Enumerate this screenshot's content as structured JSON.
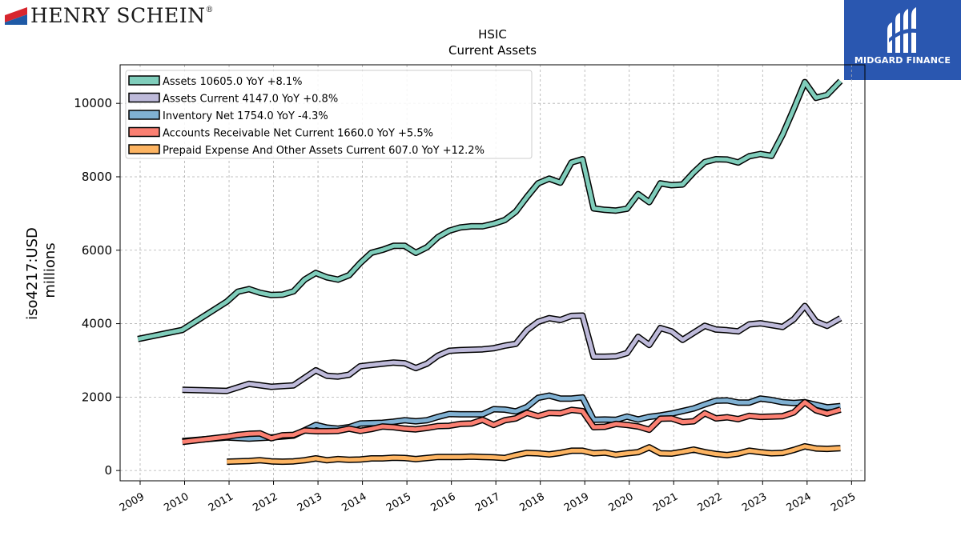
{
  "brand": {
    "left_name": "HENRY SCHEIN",
    "left_mark": "®",
    "right_name": "MIDGARD FINANCE"
  },
  "chart_data": {
    "type": "line",
    "title": "HSIC",
    "subtitle": "Current  Assets",
    "xlabel": "",
    "ylabel_line1": "iso4217:USD",
    "ylabel_line2": "millions",
    "xlim": [
      2008.55,
      2025.3
    ],
    "ylim": [
      -280,
      11050
    ],
    "x_ticks": [
      2009,
      2010,
      2011,
      2012,
      2013,
      2014,
      2015,
      2016,
      2017,
      2018,
      2019,
      2020,
      2021,
      2022,
      2023,
      2024,
      2025
    ],
    "y_ticks": [
      0,
      2000,
      4000,
      6000,
      8000,
      10000
    ],
    "grid": true,
    "legend_position": "top-left",
    "series": [
      {
        "name": "Assets",
        "legend": "Assets  10605.0 YoY +8.1%",
        "color": "#7fcdbb",
        "points": [
          [
            2008.95,
            3580
          ],
          [
            2009.95,
            3830
          ],
          [
            2010.95,
            4600
          ],
          [
            2011.2,
            4870
          ],
          [
            2011.45,
            4940
          ],
          [
            2011.7,
            4840
          ],
          [
            2011.95,
            4780
          ],
          [
            2012.2,
            4790
          ],
          [
            2012.45,
            4880
          ],
          [
            2012.7,
            5200
          ],
          [
            2012.95,
            5380
          ],
          [
            2013.2,
            5260
          ],
          [
            2013.45,
            5200
          ],
          [
            2013.7,
            5320
          ],
          [
            2013.95,
            5650
          ],
          [
            2014.2,
            5930
          ],
          [
            2014.45,
            6010
          ],
          [
            2014.7,
            6120
          ],
          [
            2014.95,
            6120
          ],
          [
            2015.2,
            5930
          ],
          [
            2015.45,
            6080
          ],
          [
            2015.7,
            6360
          ],
          [
            2015.95,
            6530
          ],
          [
            2016.2,
            6620
          ],
          [
            2016.45,
            6650
          ],
          [
            2016.7,
            6650
          ],
          [
            2016.95,
            6720
          ],
          [
            2017.2,
            6820
          ],
          [
            2017.45,
            7050
          ],
          [
            2017.7,
            7450
          ],
          [
            2017.95,
            7820
          ],
          [
            2018.2,
            7950
          ],
          [
            2018.45,
            7840
          ],
          [
            2018.7,
            8390
          ],
          [
            2018.95,
            8480
          ],
          [
            2019.2,
            7140
          ],
          [
            2019.45,
            7100
          ],
          [
            2019.7,
            7080
          ],
          [
            2019.95,
            7130
          ],
          [
            2020.2,
            7530
          ],
          [
            2020.45,
            7310
          ],
          [
            2020.7,
            7820
          ],
          [
            2020.95,
            7770
          ],
          [
            2021.2,
            7790
          ],
          [
            2021.45,
            8120
          ],
          [
            2021.7,
            8400
          ],
          [
            2021.95,
            8480
          ],
          [
            2022.2,
            8470
          ],
          [
            2022.45,
            8390
          ],
          [
            2022.7,
            8560
          ],
          [
            2022.95,
            8620
          ],
          [
            2023.2,
            8570
          ],
          [
            2023.45,
            9150
          ],
          [
            2023.7,
            9850
          ],
          [
            2023.95,
            10580
          ],
          [
            2024.2,
            10150
          ],
          [
            2024.45,
            10230
          ],
          [
            2024.75,
            10605
          ]
        ]
      },
      {
        "name": "Assets Current",
        "legend": "Assets Current  4147.0 YoY +0.8%",
        "color": "#bebada",
        "points": [
          [
            2009.95,
            2200
          ],
          [
            2010.95,
            2170
          ],
          [
            2011.45,
            2360
          ],
          [
            2011.95,
            2280
          ],
          [
            2012.45,
            2320
          ],
          [
            2012.95,
            2730
          ],
          [
            2013.2,
            2580
          ],
          [
            2013.45,
            2560
          ],
          [
            2013.7,
            2610
          ],
          [
            2013.95,
            2840
          ],
          [
            2014.45,
            2910
          ],
          [
            2014.7,
            2940
          ],
          [
            2014.95,
            2920
          ],
          [
            2015.2,
            2790
          ],
          [
            2015.45,
            2910
          ],
          [
            2015.7,
            3130
          ],
          [
            2015.95,
            3260
          ],
          [
            2016.2,
            3280
          ],
          [
            2016.7,
            3300
          ],
          [
            2016.95,
            3330
          ],
          [
            2017.2,
            3400
          ],
          [
            2017.45,
            3450
          ],
          [
            2017.7,
            3820
          ],
          [
            2017.95,
            4050
          ],
          [
            2018.2,
            4150
          ],
          [
            2018.45,
            4100
          ],
          [
            2018.7,
            4210
          ],
          [
            2018.95,
            4220
          ],
          [
            2019.2,
            3100
          ],
          [
            2019.45,
            3100
          ],
          [
            2019.7,
            3110
          ],
          [
            2019.95,
            3200
          ],
          [
            2020.2,
            3640
          ],
          [
            2020.45,
            3420
          ],
          [
            2020.7,
            3880
          ],
          [
            2020.95,
            3790
          ],
          [
            2021.2,
            3560
          ],
          [
            2021.45,
            3750
          ],
          [
            2021.7,
            3940
          ],
          [
            2021.95,
            3840
          ],
          [
            2022.2,
            3820
          ],
          [
            2022.45,
            3790
          ],
          [
            2022.7,
            3980
          ],
          [
            2022.95,
            4010
          ],
          [
            2023.2,
            3960
          ],
          [
            2023.45,
            3910
          ],
          [
            2023.7,
            4120
          ],
          [
            2023.95,
            4480
          ],
          [
            2024.2,
            4060
          ],
          [
            2024.45,
            3940
          ],
          [
            2024.75,
            4147
          ]
        ]
      },
      {
        "name": "Inventory Net",
        "legend": "Inventory Net  1754.0 YoY -4.3%",
        "color": "#80b1d3",
        "points": [
          [
            2009.95,
            800
          ],
          [
            2010.95,
            900
          ],
          [
            2011.45,
            870
          ],
          [
            2011.95,
            900
          ],
          [
            2012.45,
            950
          ],
          [
            2012.95,
            1240
          ],
          [
            2013.2,
            1170
          ],
          [
            2013.45,
            1140
          ],
          [
            2013.7,
            1180
          ],
          [
            2013.95,
            1280
          ],
          [
            2014.45,
            1300
          ],
          [
            2014.7,
            1330
          ],
          [
            2014.95,
            1370
          ],
          [
            2015.2,
            1340
          ],
          [
            2015.45,
            1370
          ],
          [
            2015.7,
            1460
          ],
          [
            2015.95,
            1540
          ],
          [
            2016.2,
            1530
          ],
          [
            2016.7,
            1530
          ],
          [
            2016.95,
            1670
          ],
          [
            2017.2,
            1660
          ],
          [
            2017.45,
            1610
          ],
          [
            2017.7,
            1730
          ],
          [
            2017.95,
            1980
          ],
          [
            2018.2,
            2040
          ],
          [
            2018.45,
            1960
          ],
          [
            2018.7,
            1960
          ],
          [
            2018.95,
            1990
          ],
          [
            2019.2,
            1380
          ],
          [
            2019.45,
            1390
          ],
          [
            2019.7,
            1380
          ],
          [
            2019.95,
            1470
          ],
          [
            2020.2,
            1390
          ],
          [
            2020.45,
            1460
          ],
          [
            2020.7,
            1500
          ],
          [
            2020.95,
            1550
          ],
          [
            2021.2,
            1620
          ],
          [
            2021.45,
            1690
          ],
          [
            2021.7,
            1800
          ],
          [
            2021.95,
            1900
          ],
          [
            2022.2,
            1910
          ],
          [
            2022.45,
            1850
          ],
          [
            2022.7,
            1850
          ],
          [
            2022.95,
            1960
          ],
          [
            2023.2,
            1920
          ],
          [
            2023.45,
            1860
          ],
          [
            2023.7,
            1840
          ],
          [
            2023.95,
            1860
          ],
          [
            2024.2,
            1790
          ],
          [
            2024.45,
            1720
          ],
          [
            2024.75,
            1754
          ]
        ]
      },
      {
        "name": "Accounts Receivable Net Current",
        "legend": "Accounts Receivable Net Current  1660.0 YoY +5.5%",
        "color": "#fb8072",
        "points": [
          [
            2009.95,
            780
          ],
          [
            2010.95,
            920
          ],
          [
            2011.2,
            970
          ],
          [
            2011.45,
            1000
          ],
          [
            2011.7,
            1010
          ],
          [
            2011.95,
            880
          ],
          [
            2012.2,
            960
          ],
          [
            2012.45,
            970
          ],
          [
            2012.7,
            1090
          ],
          [
            2012.95,
            1070
          ],
          [
            2013.2,
            1070
          ],
          [
            2013.45,
            1080
          ],
          [
            2013.7,
            1140
          ],
          [
            2013.95,
            1080
          ],
          [
            2014.2,
            1130
          ],
          [
            2014.45,
            1200
          ],
          [
            2014.7,
            1180
          ],
          [
            2014.95,
            1140
          ],
          [
            2015.2,
            1120
          ],
          [
            2015.45,
            1160
          ],
          [
            2015.7,
            1210
          ],
          [
            2015.95,
            1220
          ],
          [
            2016.2,
            1270
          ],
          [
            2016.45,
            1280
          ],
          [
            2016.7,
            1380
          ],
          [
            2016.95,
            1240
          ],
          [
            2017.2,
            1370
          ],
          [
            2017.45,
            1420
          ],
          [
            2017.7,
            1570
          ],
          [
            2017.95,
            1480
          ],
          [
            2018.2,
            1570
          ],
          [
            2018.45,
            1560
          ],
          [
            2018.7,
            1650
          ],
          [
            2018.95,
            1620
          ],
          [
            2019.2,
            1180
          ],
          [
            2019.45,
            1190
          ],
          [
            2019.7,
            1270
          ],
          [
            2019.95,
            1240
          ],
          [
            2020.2,
            1200
          ],
          [
            2020.45,
            1110
          ],
          [
            2020.7,
            1410
          ],
          [
            2020.95,
            1420
          ],
          [
            2021.2,
            1320
          ],
          [
            2021.45,
            1340
          ],
          [
            2021.7,
            1560
          ],
          [
            2021.95,
            1420
          ],
          [
            2022.2,
            1450
          ],
          [
            2022.45,
            1400
          ],
          [
            2022.7,
            1490
          ],
          [
            2022.95,
            1460
          ],
          [
            2023.2,
            1470
          ],
          [
            2023.45,
            1480
          ],
          [
            2023.7,
            1580
          ],
          [
            2023.95,
            1860
          ],
          [
            2024.2,
            1640
          ],
          [
            2024.45,
            1550
          ],
          [
            2024.75,
            1660
          ]
        ]
      },
      {
        "name": "Prepaid Expense And Other Assets Current",
        "legend": "Prepaid Expense And Other Assets Current  607.0 YoY +12.2%",
        "color": "#fdb462",
        "points": [
          [
            2010.95,
            240
          ],
          [
            2011.45,
            260
          ],
          [
            2011.7,
            280
          ],
          [
            2011.95,
            250
          ],
          [
            2012.2,
            240
          ],
          [
            2012.45,
            250
          ],
          [
            2012.7,
            280
          ],
          [
            2012.95,
            330
          ],
          [
            2013.2,
            280
          ],
          [
            2013.45,
            310
          ],
          [
            2013.7,
            290
          ],
          [
            2013.95,
            300
          ],
          [
            2014.2,
            330
          ],
          [
            2014.45,
            330
          ],
          [
            2014.7,
            350
          ],
          [
            2014.95,
            340
          ],
          [
            2015.2,
            310
          ],
          [
            2015.45,
            340
          ],
          [
            2015.7,
            370
          ],
          [
            2015.95,
            370
          ],
          [
            2016.2,
            370
          ],
          [
            2016.45,
            380
          ],
          [
            2016.7,
            370
          ],
          [
            2016.95,
            360
          ],
          [
            2017.2,
            340
          ],
          [
            2017.45,
            420
          ],
          [
            2017.7,
            480
          ],
          [
            2017.95,
            470
          ],
          [
            2018.2,
            440
          ],
          [
            2018.45,
            480
          ],
          [
            2018.7,
            540
          ],
          [
            2018.95,
            540
          ],
          [
            2019.2,
            470
          ],
          [
            2019.45,
            490
          ],
          [
            2019.7,
            430
          ],
          [
            2019.95,
            470
          ],
          [
            2020.2,
            500
          ],
          [
            2020.45,
            630
          ],
          [
            2020.7,
            470
          ],
          [
            2020.95,
            460
          ],
          [
            2021.2,
            510
          ],
          [
            2021.45,
            570
          ],
          [
            2021.7,
            500
          ],
          [
            2021.95,
            450
          ],
          [
            2022.2,
            420
          ],
          [
            2022.45,
            460
          ],
          [
            2022.7,
            540
          ],
          [
            2022.95,
            500
          ],
          [
            2023.2,
            470
          ],
          [
            2023.45,
            480
          ],
          [
            2023.7,
            560
          ],
          [
            2023.95,
            660
          ],
          [
            2024.2,
            600
          ],
          [
            2024.45,
            590
          ],
          [
            2024.75,
            607
          ]
        ]
      }
    ]
  }
}
